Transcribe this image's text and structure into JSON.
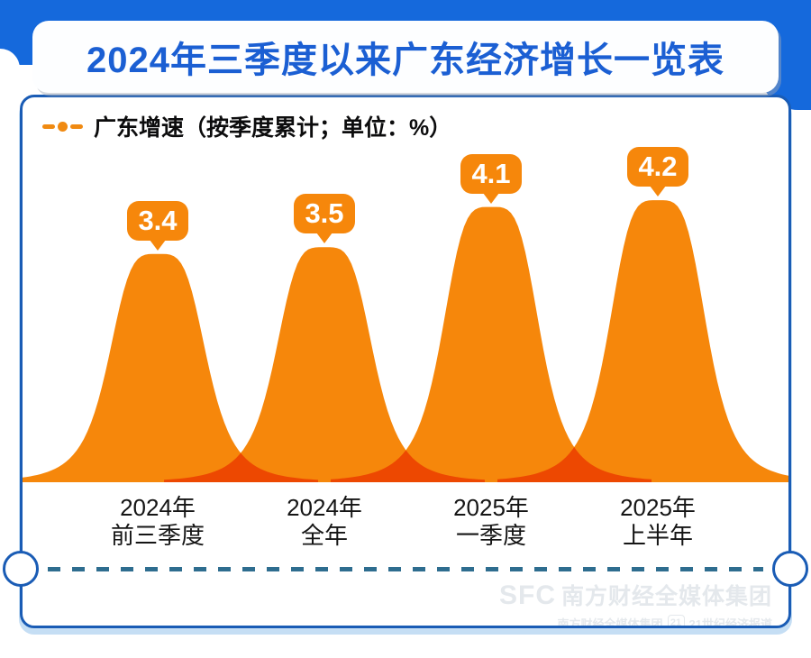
{
  "header": {
    "title": "2024年三季度以来广东经济增长一览表"
  },
  "legend": {
    "label": "广东增速（按季度累计；单位：%）",
    "marker": "dash-dot-dash"
  },
  "chart_data": {
    "type": "area",
    "title": "2024年三季度以来广东经济增长一览表",
    "series": [
      {
        "name": "广东增速",
        "values": [
          3.4,
          3.5,
          4.1,
          4.2
        ]
      }
    ],
    "value_labels": [
      "3.4",
      "3.5",
      "4.1",
      "4.2"
    ],
    "categories": [
      [
        "2024年",
        "前三季度"
      ],
      [
        "2024年",
        "全年"
      ],
      [
        "2025年",
        "一季度"
      ],
      [
        "2025年",
        "上半年"
      ]
    ],
    "unit": "%",
    "ylim": [
      0,
      4.6
    ],
    "grid": false,
    "legend_position": "top-left",
    "curve_style": "bell-peaks with darker overlap at tails"
  },
  "watermark": {
    "logo": "SFC",
    "line1": "南方财经全媒体集团",
    "line2_left": "南方财经全媒体集团",
    "badge": "21",
    "line2_right": "21世纪经济报道"
  },
  "colors": {
    "band_blue": "#1569DC",
    "title_blue": "#1B5FD3",
    "card_border": "#1A5CB5",
    "curve_orange": "#F6870B",
    "legend_orange": "#F08A12",
    "dashed_line": "#2E6D8F",
    "label_black": "#151515"
  }
}
